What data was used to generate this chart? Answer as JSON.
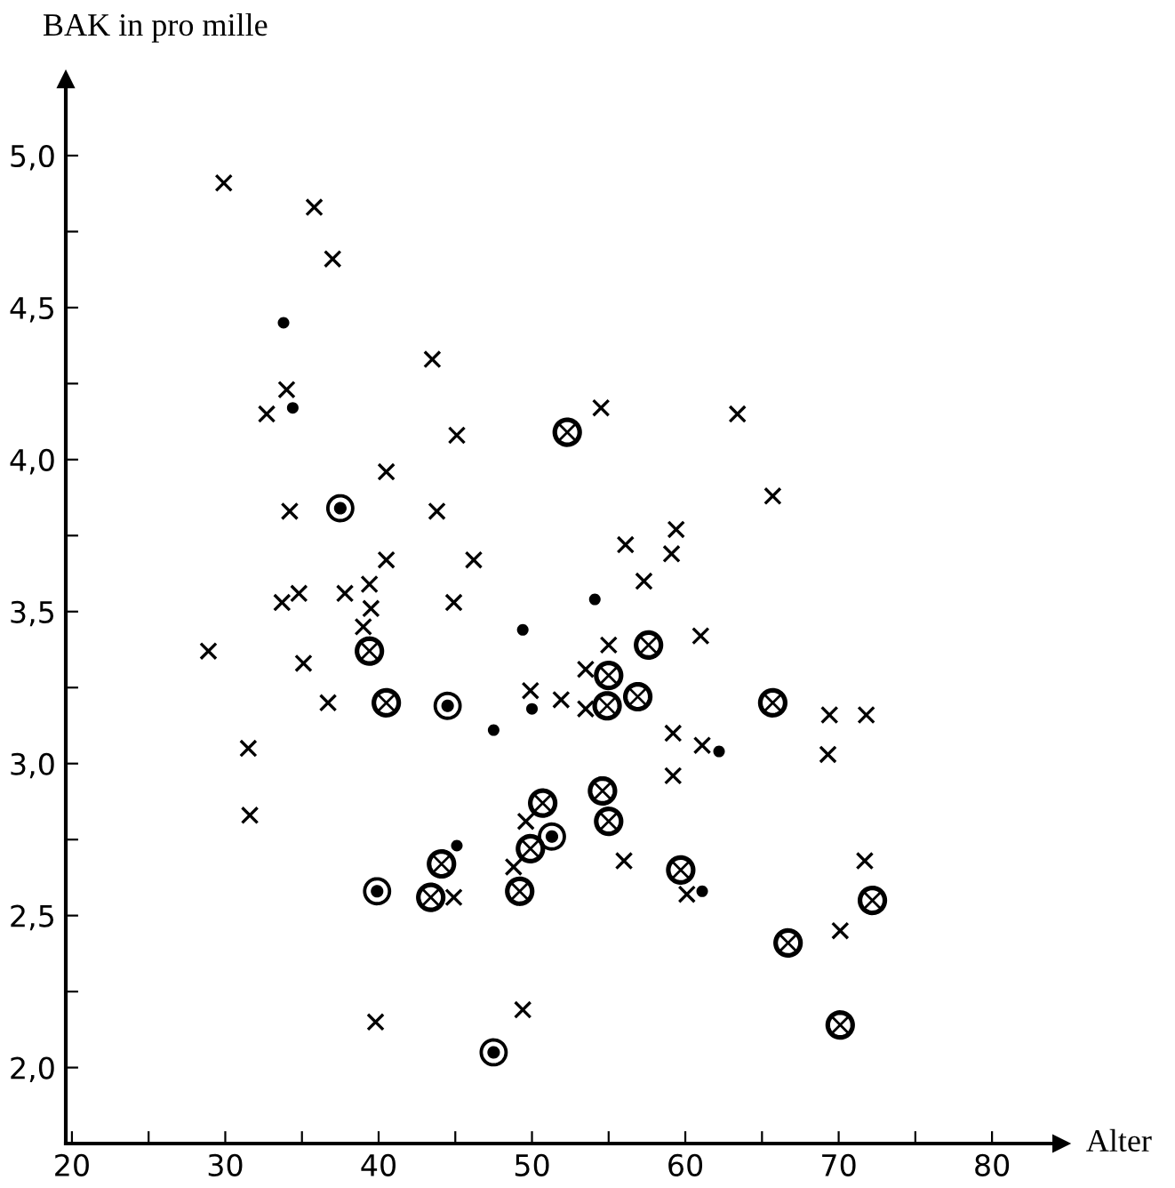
{
  "chart_data": {
    "type": "scatter",
    "xlabel": "Alter",
    "ylabel": "BAK in pro mille",
    "xlim": [
      19.6,
      84.5
    ],
    "ylim": [
      1.75,
      5.25
    ],
    "xticks": [
      20,
      {
        "value": 25,
        "label": null
      },
      30,
      {
        "value": 35,
        "label": null
      },
      40,
      {
        "value": 45,
        "label": null
      },
      50,
      {
        "value": 55,
        "label": null
      },
      60,
      {
        "value": 65,
        "label": null
      },
      70,
      {
        "value": 75,
        "label": null
      },
      80
    ],
    "yticks": [
      {
        "value": 2.0,
        "label": "2,0"
      },
      {
        "value": 2.25,
        "label": null
      },
      {
        "value": 2.5,
        "label": "2,5"
      },
      {
        "value": 2.75,
        "label": null
      },
      {
        "value": 3.0,
        "label": "3,0"
      },
      {
        "value": 3.25,
        "label": null
      },
      {
        "value": 3.5,
        "label": "3,5"
      },
      {
        "value": 3.75,
        "label": null
      },
      {
        "value": 4.0,
        "label": "4,0"
      },
      {
        "value": 4.25,
        "label": null
      },
      {
        "value": 4.5,
        "label": "4,5"
      },
      {
        "value": 4.75,
        "label": null
      },
      {
        "value": 5.0,
        "label": "5,0"
      }
    ],
    "grid": false,
    "legend": false,
    "series": [
      {
        "color": "#000000",
        "marker": "cross",
        "x": [
          29.9,
          35.8,
          37.0,
          43.5,
          34.0,
          32.7,
          45.1,
          40.5,
          34.2,
          43.8,
          40.5,
          46.2,
          39.4,
          39.5,
          33.7,
          34.8,
          37.8,
          44.9,
          39.0,
          28.9,
          35.1,
          54.5,
          63.4,
          65.7,
          59.4,
          56.1,
          59.1,
          57.3,
          55.0,
          61.0,
          53.5,
          51.9,
          53.5,
          69.4,
          71.8,
          59.2,
          61.1,
          69.3,
          59.2,
          36.7,
          31.5,
          31.6,
          49.9,
          48.8,
          49.6,
          44.9,
          39.8,
          49.4,
          56.0,
          60.1,
          71.7,
          70.1
        ],
        "values": [
          4.91,
          4.83,
          4.66,
          4.33,
          4.23,
          4.15,
          4.08,
          3.96,
          3.83,
          3.83,
          3.67,
          3.67,
          3.59,
          3.51,
          3.53,
          3.56,
          3.56,
          3.53,
          3.45,
          3.37,
          3.33,
          4.17,
          4.15,
          3.88,
          3.77,
          3.72,
          3.69,
          3.6,
          3.39,
          3.42,
          3.31,
          3.21,
          3.18,
          3.16,
          3.16,
          3.1,
          3.06,
          3.03,
          2.96,
          3.2,
          3.05,
          2.83,
          3.24,
          2.66,
          2.81,
          2.56,
          2.15,
          2.19,
          2.68,
          2.57,
          2.68,
          2.45
        ]
      },
      {
        "color": "#000000",
        "marker": "circle",
        "x": [
          33.8,
          34.4,
          49.4,
          54.1,
          62.2,
          47.5,
          50.0,
          45.1,
          61.1
        ],
        "values": [
          4.45,
          4.17,
          3.44,
          3.54,
          3.04,
          3.11,
          3.18,
          2.73,
          2.58
        ]
      },
      {
        "color": "#000000",
        "x": [
          52.3,
          39.4,
          57.6,
          55.0,
          56.9,
          54.9,
          65.7,
          54.6,
          55.0,
          50.7,
          40.5,
          44.1,
          43.4,
          49.9,
          49.2,
          59.7,
          66.7,
          72.2,
          70.1
        ],
        "values": [
          4.09,
          3.37,
          3.39,
          3.29,
          3.22,
          3.19,
          3.2,
          2.91,
          2.81,
          2.87,
          3.2,
          2.67,
          2.56,
          2.72,
          2.58,
          2.65,
          2.41,
          2.55,
          2.14
        ]
      },
      {
        "color": "#000000",
        "marker": "circle-dot",
        "x": [
          37.5,
          51.3,
          44.5,
          39.9,
          47.5
        ],
        "values": [
          3.84,
          2.76,
          3.19,
          2.58,
          2.05
        ]
      }
    ]
  }
}
